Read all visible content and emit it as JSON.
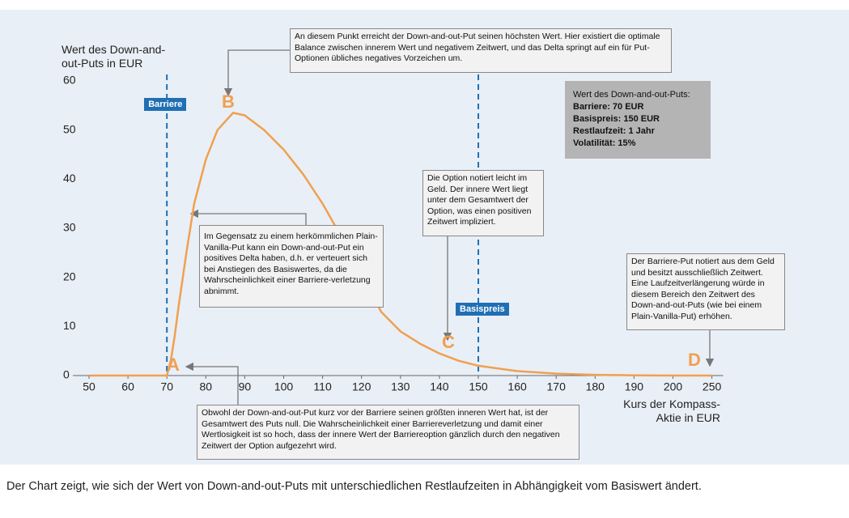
{
  "chart_data": {
    "type": "line",
    "ylabel": "Wert des Down-and-out-Puts in EUR",
    "xlabel": "Kurs der Kompass-Aktie in EUR",
    "x": [
      50,
      55,
      60,
      65,
      70,
      71,
      72,
      73,
      75,
      77,
      80,
      83,
      87,
      90,
      95,
      100,
      105,
      110,
      115,
      120,
      125,
      130,
      135,
      140,
      145,
      150,
      160,
      170,
      180,
      190,
      200,
      250
    ],
    "series": [
      {
        "name": "Down-and-out-Put",
        "color": "#f0a050",
        "values": [
          0,
          0,
          0,
          0,
          0,
          3,
          8,
          14,
          25,
          35,
          44,
          50,
          53.5,
          53,
          50,
          46,
          41,
          35,
          28,
          21,
          13,
          9,
          6.5,
          4.5,
          3,
          2,
          0.9,
          0.4,
          0.15,
          0.05,
          0,
          0
        ]
      }
    ],
    "xlim": [
      50,
      250
    ],
    "xticks": [
      50,
      60,
      70,
      80,
      90,
      100,
      110,
      120,
      130,
      140,
      150,
      160,
      170,
      180,
      190,
      200,
      250
    ],
    "ylim": [
      0,
      60
    ],
    "yticks": [
      0,
      10,
      20,
      30,
      40,
      50,
      60
    ],
    "grid": false,
    "vlines": [
      {
        "x": 70,
        "label": "Barriere"
      },
      {
        "x": 150,
        "label": "Basispreis"
      }
    ],
    "point_labels": [
      "A",
      "B",
      "C",
      "D"
    ],
    "info_box": {
      "title": "Wert des Down-and-out-Puts:",
      "lines": [
        "Barriere: 70 EUR",
        "Basispreis: 150 EUR",
        "Restlaufzeit: 1 Jahr",
        "Volatilität: 15%"
      ]
    },
    "annotations": [
      "An diesem Punkt erreicht der Down-and-out-Put seinen höchsten Wert. Hier existiert die optimale Balance zwischen innerem Wert und negativem Zeitwert, und das Delta springt auf ein für Put-Optionen übliches negatives Vorzeichen um.",
      "Im Gegensatz zu einem herkömmlichen Plain-Vanilla-Put kann ein Down-and-out-Put ein positives Delta haben, d.h. er verteuert sich bei Anstiegen des Basiswertes, da die Wahrscheinlichkeit einer Barriere-verletzung abnimmt.",
      "Die Option notiert leicht im Geld. Der innere Wert liegt unter dem Gesamtwert der Option, was einen positiven Zeitwert impliziert.",
      "Der Barriere-Put notiert aus dem Geld und besitzt ausschließlich Zeitwert. Eine Laufzeitverlängerung würde in diesem Bereich den Zeitwert des Down-and-out-Puts (wie bei einem Plain-Vanilla-Put) erhöhen.",
      "Obwohl der Down-and-out-Put kurz vor der Barriere seinen größten inneren Wert hat, ist der Gesamtwert des Puts null. Die Wahrscheinlichkeit einer Barriereverletzung und damit einer Wertlosigkeit ist so hoch, dass der innere Wert der Barriereoption gänzlich durch den negativen Zeitwert der Option aufgezehrt wird."
    ],
    "caption": "Der Chart zeigt, wie sich der Wert von Down-and-out-Puts mit unterschiedlichen Restlaufzeiten in Abhängigkeit vom Basiswert ändert."
  }
}
